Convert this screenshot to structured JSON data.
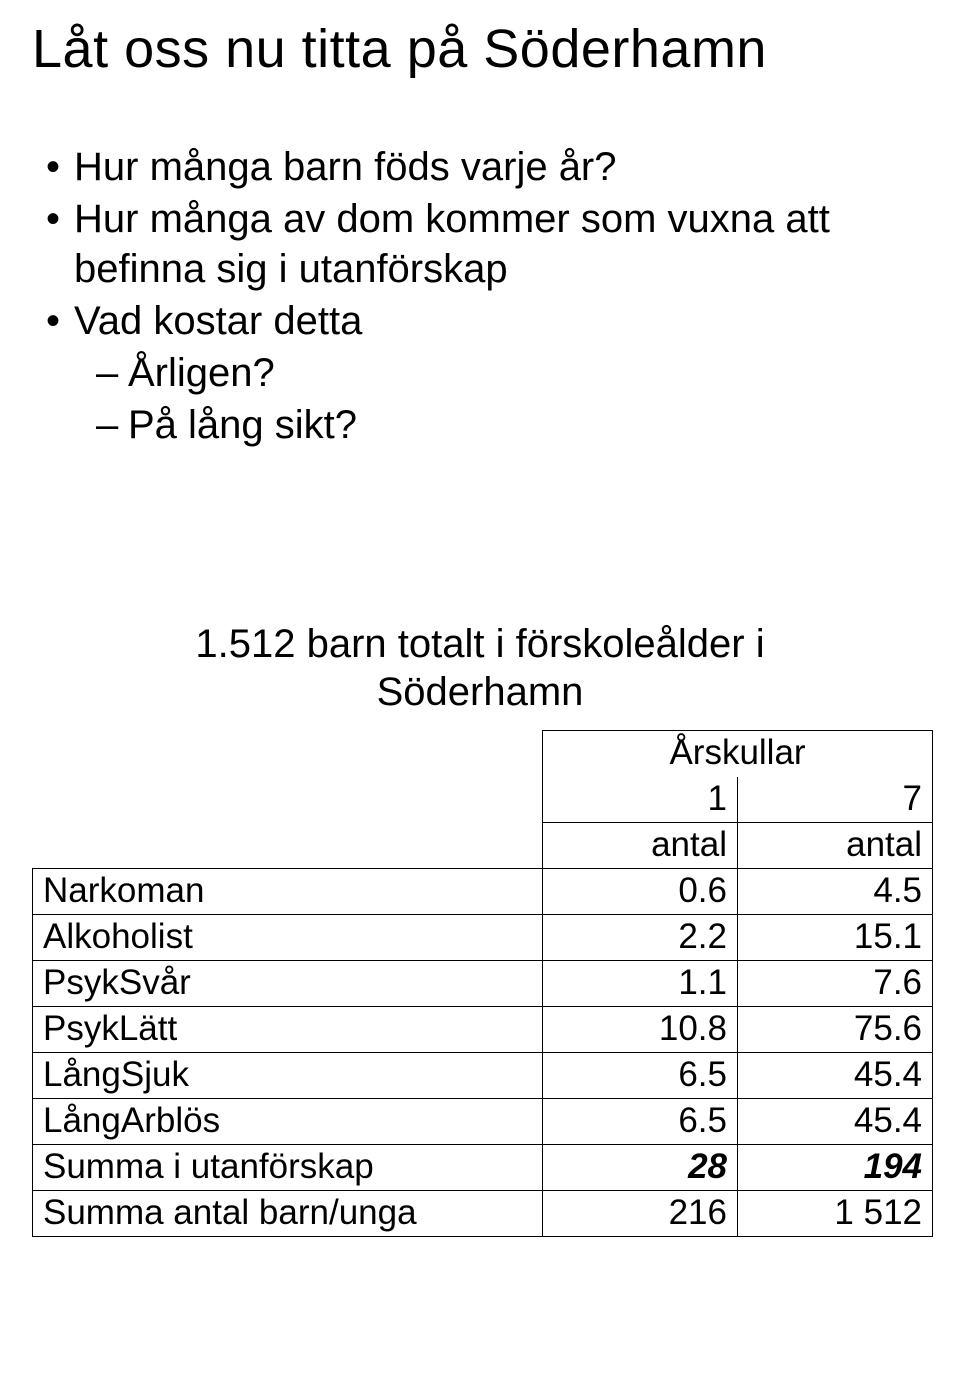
{
  "title": "Låt oss nu titta på  Söderhamn",
  "bullets": {
    "b1": "Hur många barn föds varje år?",
    "b2": "Hur många av dom kommer som vuxna att befinna sig i utanförskap",
    "b3": "Vad kostar detta",
    "sub1": "Årligen?",
    "sub2": "På lång sikt?"
  },
  "subtitle": "1.512 barn totalt i förskoleålder i Söderhamn",
  "table": {
    "header_span": "Årskullar",
    "h1": "1",
    "h2": "7",
    "h_antal1": "antal",
    "h_antal2": "antal",
    "rows": {
      "r0": {
        "label": "Narkoman",
        "v1": "0.6",
        "v2": "4.5"
      },
      "r1": {
        "label": "Alkoholist",
        "v1": "2.2",
        "v2": "15.1"
      },
      "r2": {
        "label": "PsykSvår",
        "v1": "1.1",
        "v2": "7.6"
      },
      "r3": {
        "label": "PsykLätt",
        "v1": "10.8",
        "v2": "75.6"
      },
      "r4": {
        "label": "LångSjuk",
        "v1": "6.5",
        "v2": "45.4"
      },
      "r5": {
        "label": "LångArblös",
        "v1": "6.5",
        "v2": "45.4"
      },
      "r6": {
        "label": "Summa i utanförskap",
        "v1": "28",
        "v2": "194"
      },
      "r7": {
        "label": "Summa antal barn/unga",
        "v1": "216",
        "v2": "1 512"
      }
    }
  }
}
